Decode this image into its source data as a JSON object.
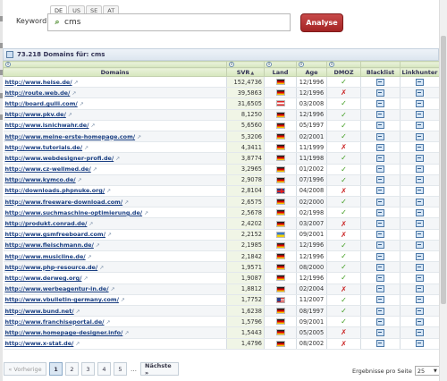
{
  "search": {
    "label": "Keyword",
    "country_tabs": [
      "DE",
      "US",
      "SE",
      "AT"
    ],
    "active_tab": "DE",
    "query": "cms",
    "button_label": "Analyse"
  },
  "results": {
    "title": "73.218 Domains für: cms"
  },
  "columns": {
    "domains": "Domains",
    "svr": "SVR",
    "land": "Land",
    "age": "Age",
    "dmoz": "DMOZ",
    "blacklist": "Blacklist",
    "linkhunter": "Linkhunter",
    "info_glyph": "i"
  },
  "rows": [
    {
      "domain": "http://www.heise.de/",
      "svr": "152,4736",
      "land": "de",
      "age": "12/1996",
      "dmoz": "yes"
    },
    {
      "domain": "http://route.web.de/",
      "svr": "39,5863",
      "land": "de",
      "age": "12/1996",
      "dmoz": "no"
    },
    {
      "domain": "http://board.gulli.com/",
      "svr": "31,6505",
      "land": "at",
      "age": "03/2008",
      "dmoz": "yes"
    },
    {
      "domain": "http://www.pkv.de/",
      "svr": "8,1250",
      "land": "de",
      "age": "12/1996",
      "dmoz": "yes"
    },
    {
      "domain": "http://www.isnichwahr.de/",
      "svr": "5,6560",
      "land": "de",
      "age": "05/1997",
      "dmoz": "yes"
    },
    {
      "domain": "http://www.meine-erste-homepage.com/",
      "svr": "5,3206",
      "land": "de",
      "age": "02/2001",
      "dmoz": "yes"
    },
    {
      "domain": "http://www.tutorials.de/",
      "svr": "4,3411",
      "land": "de",
      "age": "11/1999",
      "dmoz": "no"
    },
    {
      "domain": "http://www.webdesigner-profi.de/",
      "svr": "3,8774",
      "land": "de",
      "age": "11/1998",
      "dmoz": "yes"
    },
    {
      "domain": "http://www.cz-wellmed.de/",
      "svr": "3,2965",
      "land": "de",
      "age": "01/2002",
      "dmoz": "yes"
    },
    {
      "domain": "http://www.kymco.de/",
      "svr": "2,9078",
      "land": "de",
      "age": "07/1996",
      "dmoz": "yes"
    },
    {
      "domain": "http://downloads.phpnuke.org/",
      "svr": "2,8104",
      "land": "uk",
      "age": "04/2008",
      "dmoz": "no"
    },
    {
      "domain": "http://www.freeware-download.com/",
      "svr": "2,6575",
      "land": "de",
      "age": "02/2000",
      "dmoz": "yes"
    },
    {
      "domain": "http://www.suchmaschine-optimierung.de/",
      "svr": "2,5678",
      "land": "de",
      "age": "02/1998",
      "dmoz": "yes"
    },
    {
      "domain": "http://produkt.conrad.de/",
      "svr": "2,4202",
      "land": "de",
      "age": "03/2007",
      "dmoz": "no"
    },
    {
      "domain": "http://www.gsmfreeboard.com/",
      "svr": "2,2152",
      "land": "ua",
      "age": "09/2001",
      "dmoz": "no"
    },
    {
      "domain": "http://www.fleischmann.de/",
      "svr": "2,1985",
      "land": "de",
      "age": "12/1996",
      "dmoz": "yes"
    },
    {
      "domain": "http://www.musicline.de/",
      "svr": "2,1842",
      "land": "de",
      "age": "12/1996",
      "dmoz": "yes"
    },
    {
      "domain": "http://www.php-resource.de/",
      "svr": "1,9571",
      "land": "de",
      "age": "08/2000",
      "dmoz": "yes"
    },
    {
      "domain": "http://www.derweg.org/",
      "svr": "1,9087",
      "land": "de",
      "age": "12/1996",
      "dmoz": "yes"
    },
    {
      "domain": "http://www.werbeagentur-in.de/",
      "svr": "1,8812",
      "land": "de",
      "age": "02/2004",
      "dmoz": "no"
    },
    {
      "domain": "http://www.vbulletin-germany.com/",
      "svr": "1,7752",
      "land": "us",
      "age": "11/2007",
      "dmoz": "yes"
    },
    {
      "domain": "http://www.bund.net/",
      "svr": "1,6238",
      "land": "de",
      "age": "08/1997",
      "dmoz": "yes"
    },
    {
      "domain": "http://www.franchiseportal.de/",
      "svr": "1,5796",
      "land": "de",
      "age": "09/2001",
      "dmoz": "yes"
    },
    {
      "domain": "http://www.homepage-designer.info/",
      "svr": "1,5443",
      "land": "de",
      "age": "05/2005",
      "dmoz": "no"
    },
    {
      "domain": "http://www.x-stat.de/",
      "svr": "1,4796",
      "land": "de",
      "age": "08/2002",
      "dmoz": "no"
    }
  ],
  "pagination": {
    "prev": "« Vorherige",
    "pages": [
      "1",
      "2",
      "3",
      "4",
      "5"
    ],
    "current": "1",
    "dots": "…",
    "next": "Nächste »"
  },
  "per_page": {
    "label": "Ergebnisse pro Seite",
    "value": "25",
    "caret": "▼"
  },
  "icons": {
    "external_link": "↗",
    "check": "✓",
    "cross": "✗",
    "sort_asc": "▲"
  }
}
